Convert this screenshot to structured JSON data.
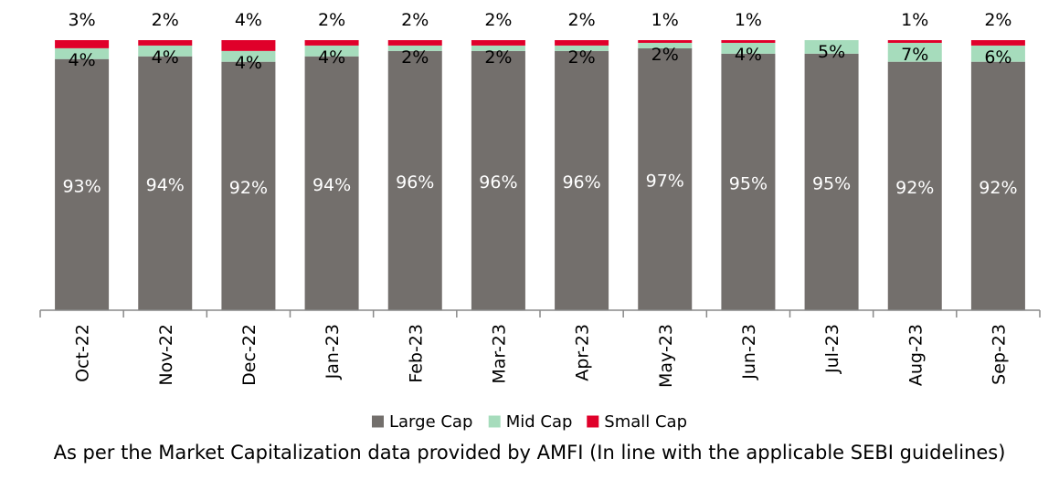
{
  "chart_data": {
    "type": "bar",
    "stacked": true,
    "categories": [
      "Oct-22",
      "Nov-22",
      "Dec-22",
      "Jan-23",
      "Feb-23",
      "Mar-23",
      "Apr-23",
      "May-23",
      "Jun-23",
      "Jul-23",
      "Aug-23",
      "Sep-23"
    ],
    "series": [
      {
        "name": "Large Cap",
        "color": "#736f6c",
        "values": [
          93,
          94,
          92,
          94,
          96,
          96,
          96,
          97,
          95,
          95,
          92,
          92
        ],
        "labels": [
          "93%",
          "94%",
          "92%",
          "94%",
          "96%",
          "96%",
          "96%",
          "97%",
          "95%",
          "95%",
          "92%",
          "92%"
        ]
      },
      {
        "name": "Mid Cap",
        "color": "#a6dcbc",
        "values": [
          4,
          4,
          4,
          4,
          2,
          2,
          2,
          2,
          4,
          5,
          7,
          6
        ],
        "labels": [
          "4%",
          "4%",
          "4%",
          "4%",
          "2%",
          "2%",
          "2%",
          "2%",
          "4%",
          "5%",
          "7%",
          "6%"
        ]
      },
      {
        "name": "Small Cap",
        "color": "#e0002a",
        "values": [
          3,
          2,
          4,
          2,
          2,
          2,
          2,
          1,
          1,
          0,
          1,
          2
        ],
        "labels": [
          "3%",
          "2%",
          "4%",
          "2%",
          "2%",
          "2%",
          "2%",
          "1%",
          "1%",
          "",
          "1%",
          "2%"
        ]
      }
    ],
    "ylim": [
      0,
      100
    ],
    "grid": false,
    "legend_position": "bottom",
    "title": "",
    "xlabel": "",
    "ylabel": ""
  },
  "footnote": "As per the Market Capitalization data provided by AMFI (In line with the applicable SEBI guidelines)"
}
